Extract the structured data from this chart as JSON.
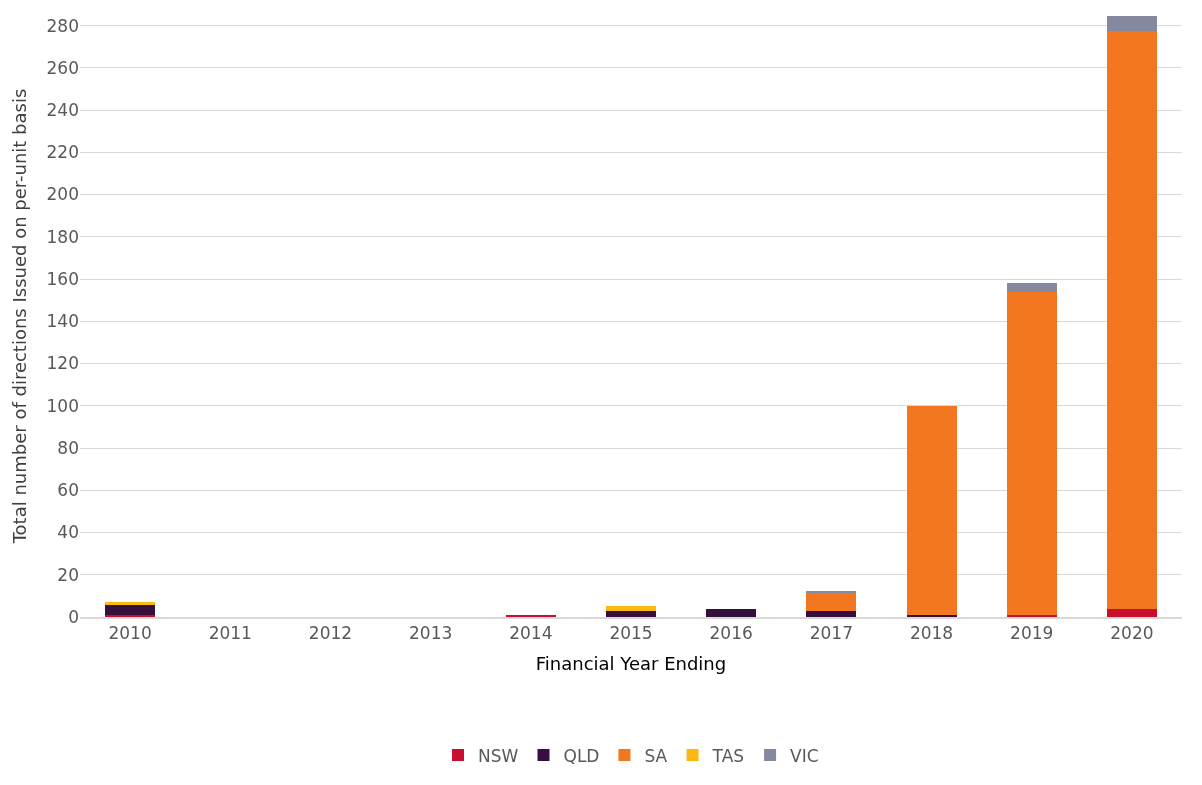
{
  "chart_data": {
    "type": "bar",
    "stacked": true,
    "xlabel": "Financial Year Ending",
    "ylabel": "Total number of directions Issued on per-unit basis",
    "categories": [
      "2010",
      "2011",
      "2012",
      "2013",
      "2014",
      "2015",
      "2016",
      "2017",
      "2018",
      "2019",
      "2020"
    ],
    "series": [
      {
        "name": "NSW",
        "color": "#c8102e",
        "values": [
          1,
          0,
          0,
          0,
          1,
          0,
          0,
          0,
          0,
          1,
          4
        ]
      },
      {
        "name": "QLD",
        "color": "#35103d",
        "values": [
          4.5,
          0,
          0,
          0,
          0,
          3,
          4,
          3,
          1,
          0,
          0
        ]
      },
      {
        "name": "SA",
        "color": "#f37621",
        "values": [
          0,
          0,
          0,
          0,
          0,
          0,
          0,
          8.5,
          99,
          153,
          273.5
        ]
      },
      {
        "name": "TAS",
        "color": "#fdb913",
        "values": [
          1.5,
          0,
          0,
          0,
          0,
          2,
          0,
          0,
          0,
          0,
          0
        ]
      },
      {
        "name": "VIC",
        "color": "#8589a0",
        "values": [
          0,
          0,
          0,
          0,
          0,
          0,
          0,
          1,
          0,
          4,
          7
        ]
      }
    ],
    "ylim": [
      0,
      285
    ],
    "yticks": [
      0,
      20,
      40,
      60,
      80,
      100,
      120,
      140,
      160,
      180,
      200,
      220,
      240,
      260,
      280
    ],
    "grid": "y",
    "legend": "bottom"
  }
}
